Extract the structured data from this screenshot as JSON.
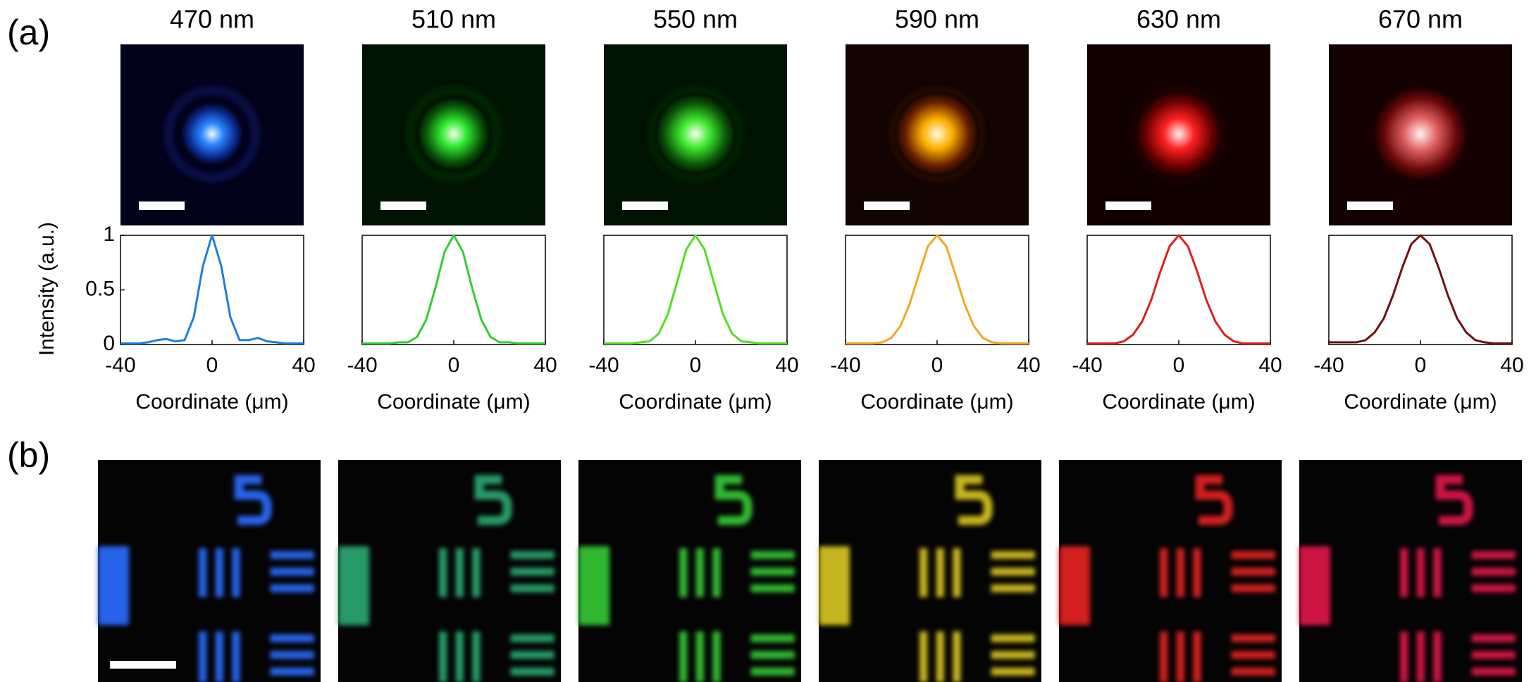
{
  "panel_labels": [
    "(a)",
    "(b)"
  ],
  "chart_data": [
    {
      "type": "line",
      "title": "470 nm",
      "x_label": "Coordinate (μm)",
      "y_label": "Intensity (a.u.)",
      "color": "#1f7fd8",
      "x": [
        -40,
        -36,
        -32,
        -28,
        -24,
        -20,
        -16,
        -12,
        -8,
        -4,
        0,
        4,
        8,
        12,
        16,
        20,
        24,
        28,
        32,
        36,
        40
      ],
      "values": [
        0.01,
        0.01,
        0.01,
        0.02,
        0.04,
        0.05,
        0.03,
        0.04,
        0.25,
        0.72,
        1,
        0.72,
        0.25,
        0.04,
        0.04,
        0.06,
        0.03,
        0.02,
        0.01,
        0.01,
        0.01
      ],
      "xlim": [
        -40,
        40
      ],
      "xticks": [
        -40,
        0,
        40
      ],
      "ylim": [
        0,
        1
      ],
      "yticks": [
        0,
        0.5,
        1
      ]
    },
    {
      "type": "line",
      "title": "510 nm",
      "x_label": "Coordinate (μm)",
      "color": "#33cc33",
      "x": [
        -40,
        -36,
        -32,
        -28,
        -24,
        -20,
        -16,
        -12,
        -8,
        -4,
        0,
        4,
        8,
        12,
        16,
        20,
        24,
        28,
        32,
        36,
        40
      ],
      "values": [
        0.01,
        0.01,
        0.01,
        0.01,
        0.02,
        0.02,
        0.07,
        0.23,
        0.52,
        0.85,
        1,
        0.85,
        0.52,
        0.23,
        0.07,
        0.02,
        0.02,
        0.01,
        0.01,
        0.01,
        0.01
      ],
      "xlim": [
        -40,
        40
      ],
      "xticks": [
        -40,
        0,
        40
      ],
      "ylim": [
        0,
        1
      ]
    },
    {
      "type": "line",
      "title": "550 nm",
      "x_label": "Coordinate (μm)",
      "color": "#55dd22",
      "x": [
        -40,
        -36,
        -32,
        -28,
        -24,
        -20,
        -16,
        -12,
        -8,
        -4,
        0,
        4,
        8,
        12,
        16,
        20,
        24,
        28,
        32,
        36,
        40
      ],
      "values": [
        0.01,
        0.01,
        0.01,
        0.01,
        0.02,
        0.03,
        0.1,
        0.28,
        0.57,
        0.87,
        1,
        0.87,
        0.57,
        0.28,
        0.1,
        0.03,
        0.02,
        0.01,
        0.01,
        0.01,
        0.01
      ],
      "xlim": [
        -40,
        40
      ],
      "xticks": [
        -40,
        0,
        40
      ],
      "ylim": [
        0,
        1
      ]
    },
    {
      "type": "line",
      "title": "590 nm",
      "x_label": "Coordinate (μm)",
      "color": "#f0a820",
      "x": [
        -40,
        -36,
        -32,
        -28,
        -24,
        -20,
        -16,
        -12,
        -8,
        -4,
        0,
        4,
        8,
        12,
        16,
        20,
        24,
        28,
        32,
        36,
        40
      ],
      "values": [
        0.01,
        0.01,
        0.01,
        0.01,
        0.02,
        0.06,
        0.17,
        0.37,
        0.64,
        0.9,
        1,
        0.9,
        0.64,
        0.37,
        0.17,
        0.06,
        0.02,
        0.01,
        0.01,
        0.01,
        0.01
      ],
      "xlim": [
        -40,
        40
      ],
      "xticks": [
        -40,
        0,
        40
      ],
      "ylim": [
        0,
        1
      ]
    },
    {
      "type": "line",
      "title": "630 nm",
      "x_label": "Coordinate (μm)",
      "color": "#dd1f1f",
      "x": [
        -40,
        -36,
        -32,
        -28,
        -24,
        -20,
        -16,
        -12,
        -8,
        -4,
        0,
        4,
        8,
        12,
        16,
        20,
        24,
        28,
        32,
        36,
        40
      ],
      "values": [
        0.01,
        0.01,
        0.01,
        0.01,
        0.03,
        0.09,
        0.21,
        0.41,
        0.67,
        0.9,
        1,
        0.9,
        0.67,
        0.41,
        0.21,
        0.09,
        0.03,
        0.01,
        0.01,
        0.01,
        0.01
      ],
      "xlim": [
        -40,
        40
      ],
      "xticks": [
        -40,
        0,
        40
      ],
      "ylim": [
        0,
        1
      ]
    },
    {
      "type": "line",
      "title": "670 nm",
      "x_label": "Coordinate (μm)",
      "color": "#701010",
      "x": [
        -40,
        -36,
        -32,
        -28,
        -24,
        -20,
        -16,
        -12,
        -8,
        -4,
        0,
        4,
        8,
        12,
        16,
        20,
        24,
        28,
        32,
        36,
        40
      ],
      "values": [
        0.02,
        0.02,
        0.02,
        0.02,
        0.04,
        0.11,
        0.24,
        0.45,
        0.7,
        0.92,
        1,
        0.92,
        0.7,
        0.45,
        0.24,
        0.11,
        0.04,
        0.02,
        0.01,
        0.01,
        0.01
      ],
      "xlim": [
        -40,
        40
      ],
      "xticks": [
        -40,
        0,
        40
      ],
      "ylim": [
        0,
        1
      ]
    }
  ]
}
